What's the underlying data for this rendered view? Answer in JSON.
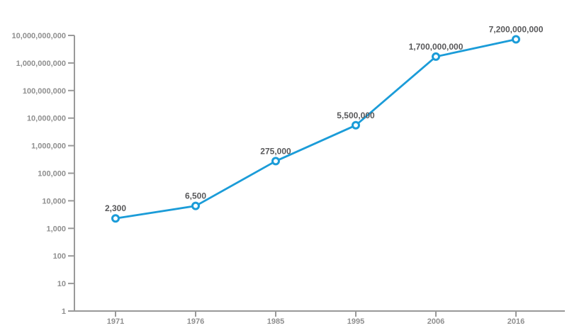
{
  "chart_data": {
    "type": "line",
    "title": "",
    "xlabel": "",
    "ylabel": "",
    "y_scale": "log",
    "ylim": [
      1,
      10000000000
    ],
    "grid": false,
    "legend": false,
    "categories": [
      "1971",
      "1976",
      "1985",
      "1995",
      "2006",
      "2016"
    ],
    "series": [
      {
        "name": "value",
        "values": [
          2300,
          6500,
          275000,
          5500000,
          1700000000,
          7200000000
        ],
        "point_labels": [
          "2,300",
          "6,500",
          "275,000",
          "5,500,000",
          "1,700,000,000",
          "7,200,000,000"
        ]
      }
    ],
    "y_tick_labels": [
      "1",
      "10",
      "100",
      "1,000",
      "10,000",
      "100,000",
      "1,000,000",
      "10,000,000",
      "100,000,000",
      "1,000,000,000",
      "10,000,000,000"
    ],
    "colors": {
      "line": "#1b9cd8",
      "marker_fill": "#ffffff",
      "axis": "#999999",
      "axis_text": "#8f8f8f",
      "data_label_text": "#58585a",
      "background": "#ffffff"
    }
  }
}
